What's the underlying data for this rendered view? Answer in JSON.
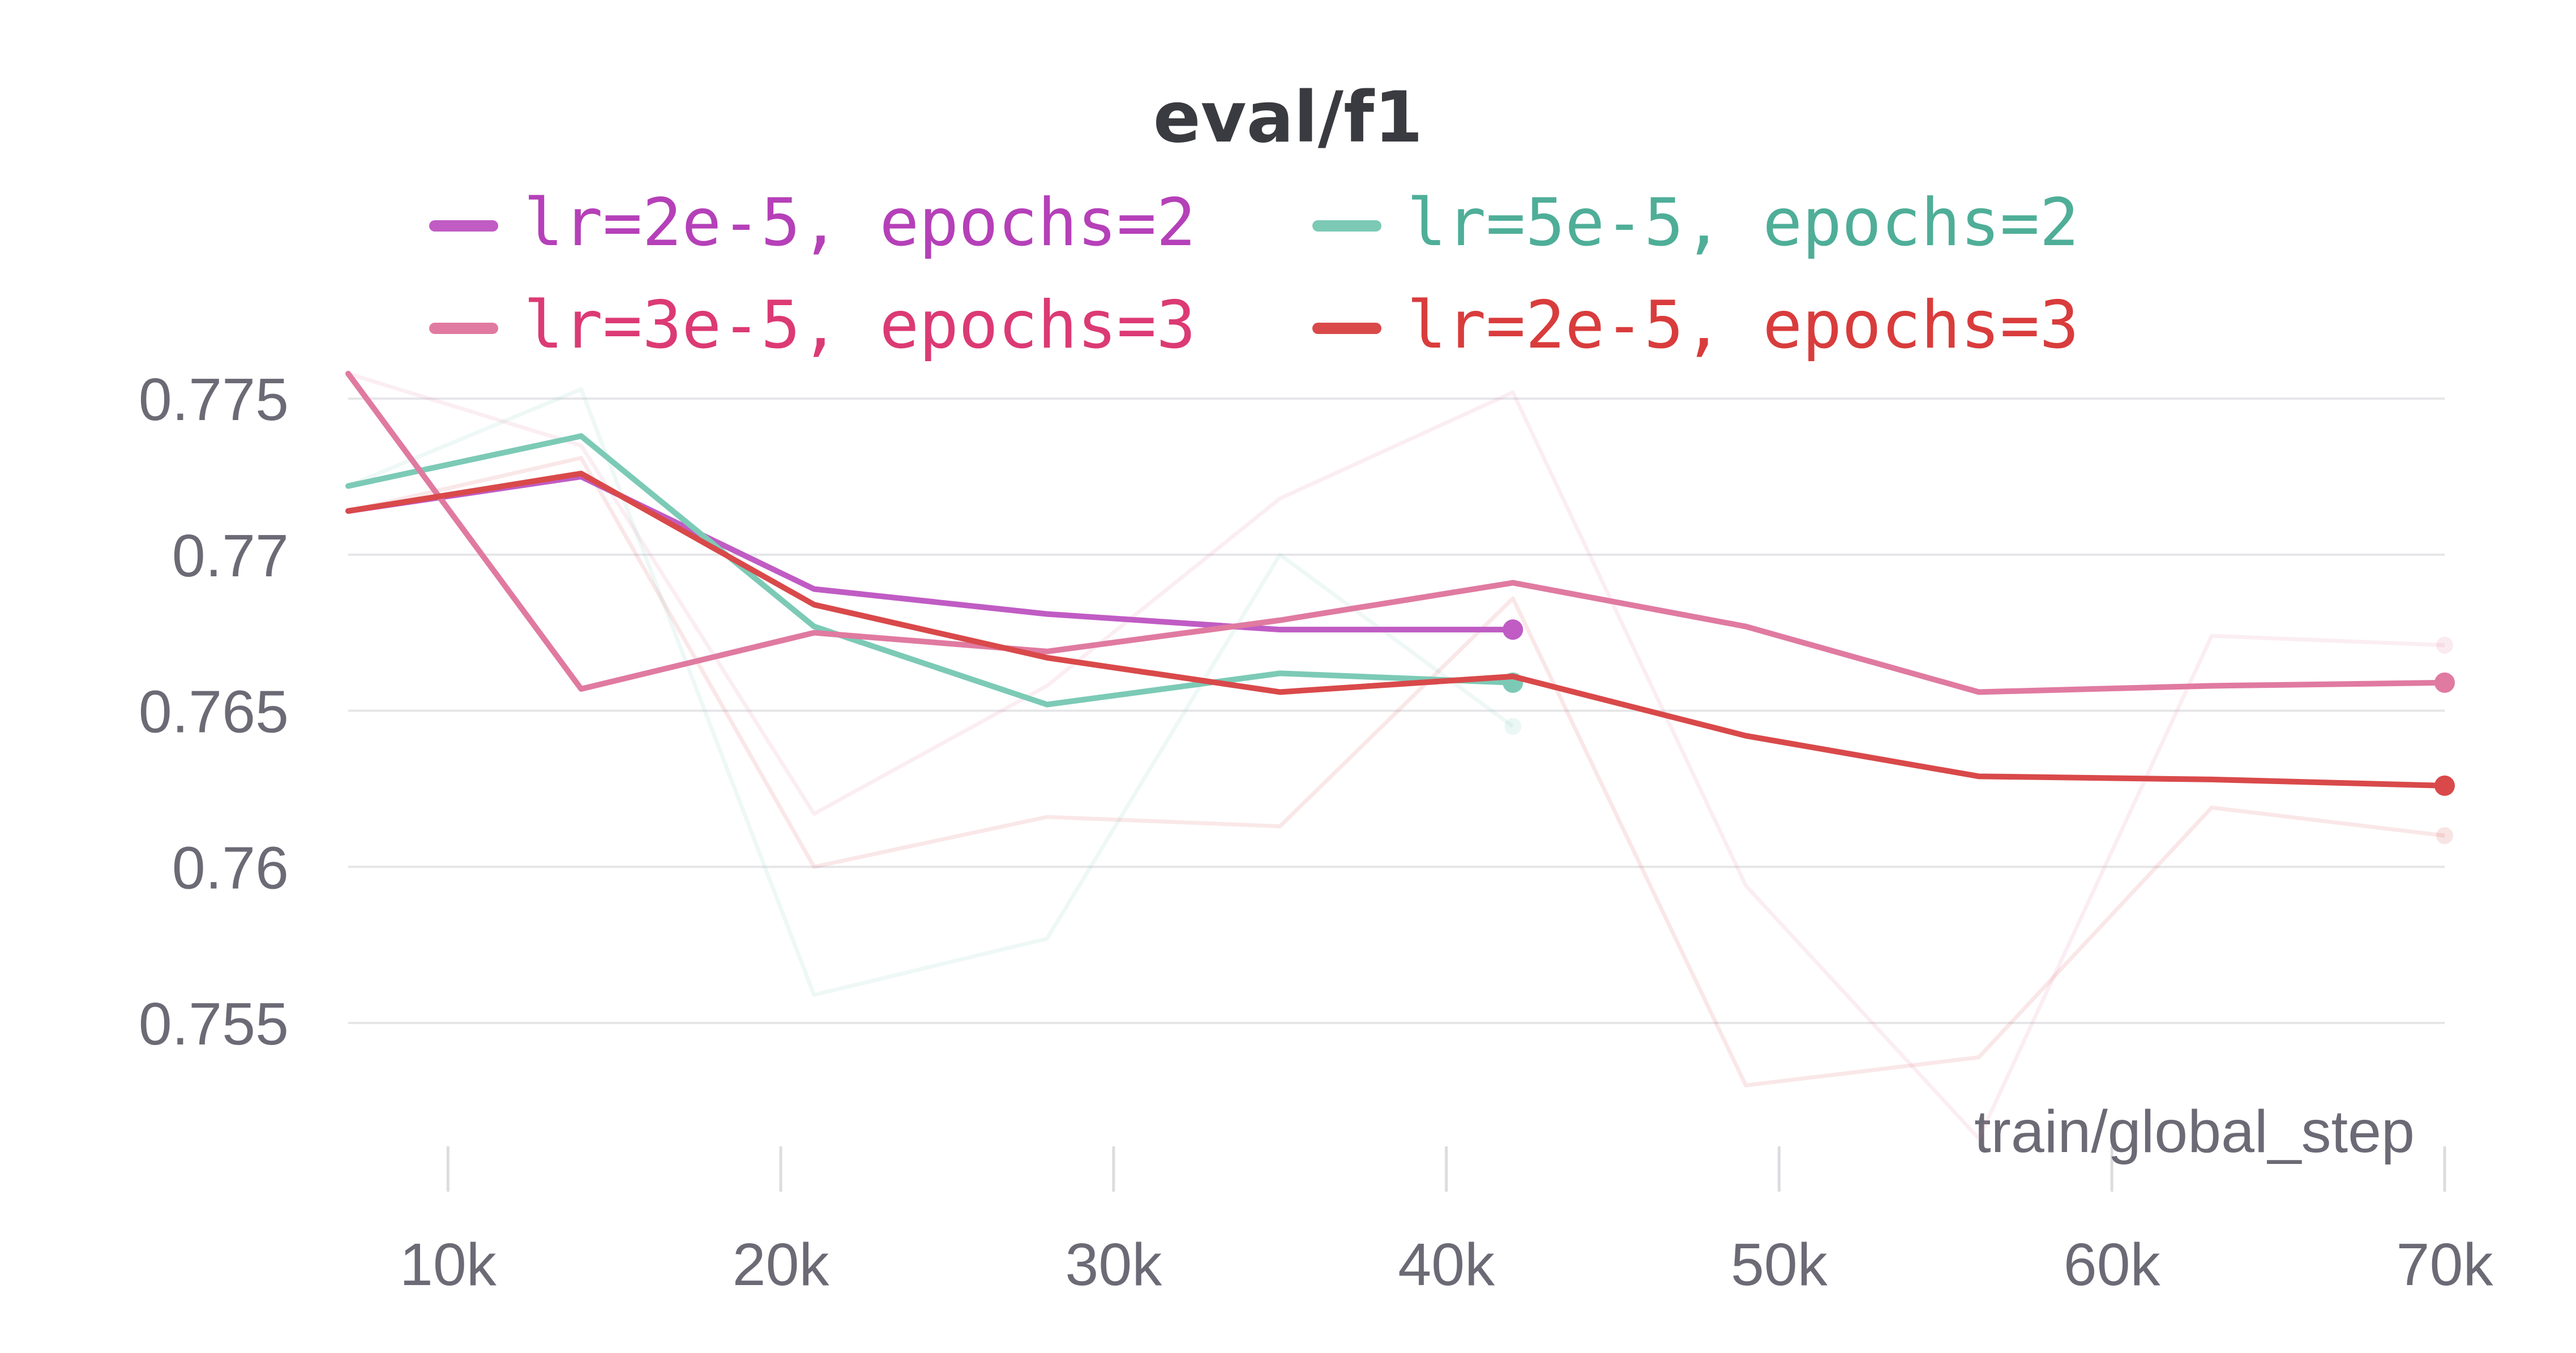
{
  "chart_data": {
    "type": "line",
    "title": "eval/f1",
    "xlabel": "train/global_step",
    "ylabel": "",
    "xlim": [
      7000,
      70000
    ],
    "ylim": [
      0.7515,
      0.7758
    ],
    "x_ticks": [
      10000,
      20000,
      30000,
      40000,
      50000,
      60000,
      70000
    ],
    "x_tick_labels": [
      "10k",
      "20k",
      "30k",
      "40k",
      "50k",
      "60k",
      "70k"
    ],
    "y_ticks": [
      0.755,
      0.76,
      0.765,
      0.77,
      0.775
    ],
    "y_tick_labels": [
      "0.755",
      "0.76",
      "0.765",
      "0.77",
      "0.775"
    ],
    "grid": "horizontal",
    "legend_position": "top",
    "series": [
      {
        "name": "lr=2e-5, epochs=2",
        "color": "#c05cc4",
        "text_color": "#b540b8",
        "x": [
          7000,
          14000,
          21000,
          28000,
          35000,
          42000
        ],
        "y": [
          0.7714,
          0.7725,
          0.7689,
          0.7681,
          0.7676,
          0.7676
        ],
        "raw_y": [
          0.7714,
          0.7725,
          0.7689,
          0.7681,
          0.7676,
          0.7676
        ]
      },
      {
        "name": "lr=5e-5, epochs=2",
        "color": "#7ccab6",
        "text_color": "#4fae98",
        "x": [
          7000,
          14000,
          21000,
          28000,
          35000,
          42000
        ],
        "y": [
          0.7722,
          0.7738,
          0.7677,
          0.7652,
          0.7662,
          0.7659
        ],
        "raw_y": [
          0.7722,
          0.7753,
          0.7559,
          0.7577,
          0.77,
          0.7645
        ]
      },
      {
        "name": "lr=3e-5, epochs=3",
        "color": "#e07aa0",
        "text_color": "#dc3a74",
        "x": [
          7000,
          14000,
          21000,
          28000,
          35000,
          42000,
          49000,
          56000,
          63000,
          70000
        ],
        "y": [
          0.7758,
          0.7657,
          0.7675,
          0.7669,
          0.7679,
          0.7691,
          0.7677,
          0.7656,
          0.7658,
          0.7659
        ],
        "raw_y": [
          0.7758,
          0.7735,
          0.7617,
          0.7658,
          0.7718,
          0.7752,
          0.7594,
          0.7513,
          0.7674,
          0.7671
        ]
      },
      {
        "name": "lr=2e-5, epochs=3",
        "color": "#d9494a",
        "text_color": "#d93c3c",
        "x": [
          7000,
          14000,
          21000,
          28000,
          35000,
          42000,
          49000,
          56000,
          63000,
          70000
        ],
        "y": [
          0.7714,
          0.7726,
          0.7684,
          0.7667,
          0.7656,
          0.7661,
          0.7642,
          0.7629,
          0.7628,
          0.7626
        ],
        "raw_y": [
          0.7714,
          0.7731,
          0.76,
          0.7616,
          0.7613,
          0.7686,
          0.753,
          0.7539,
          0.7619,
          0.761
        ]
      }
    ]
  }
}
